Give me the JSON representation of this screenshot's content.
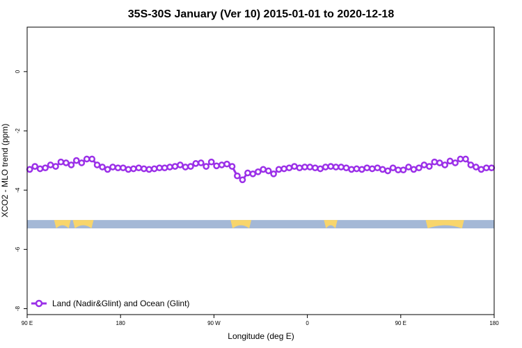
{
  "chart_data": {
    "type": "line",
    "title": "35S-30S January (Ver 10)   2015-01-01 to 2020-12-18",
    "xlabel": "Longitude (deg E)",
    "ylabel": "XCO2 - MLO trend (ppm)",
    "xlim": [
      90,
      540
    ],
    "ylim": [
      -8.2,
      1.5
    ],
    "x_ticks": [
      {
        "value": 90,
        "label": "90 E"
      },
      {
        "value": 180,
        "label": "180"
      },
      {
        "value": 270,
        "label": "90 W"
      },
      {
        "value": 360,
        "label": "0"
      },
      {
        "value": 450,
        "label": "90 E"
      },
      {
        "value": 540,
        "label": "180"
      }
    ],
    "y_ticks": [
      {
        "value": 0,
        "label": "0"
      },
      {
        "value": -2,
        "label": "-2"
      },
      {
        "value": -4,
        "label": "-4"
      },
      {
        "value": -6,
        "label": "-6"
      },
      {
        "value": -8,
        "label": "-8"
      }
    ],
    "grid": false,
    "legend_position": "bottom-left",
    "series": [
      {
        "name": "Land (Nadir&Glint) and Ocean (Glint)",
        "color": "#9b30e8",
        "x": [
          92.5,
          97.5,
          102.5,
          107.5,
          112.5,
          117.5,
          122.5,
          127.5,
          132.5,
          137.5,
          142.5,
          147.5,
          152.5,
          157.5,
          162.5,
          167.5,
          172.5,
          177.5,
          182.5,
          187.5,
          192.5,
          197.5,
          202.5,
          207.5,
          212.5,
          217.5,
          222.5,
          227.5,
          232.5,
          237.5,
          242.5,
          247.5,
          252.5,
          257.5,
          262.5,
          267.5,
          272.5,
          277.5,
          282.5,
          287.5,
          292.5,
          297.5,
          302.5,
          307.5,
          312.5,
          317.5,
          322.5,
          327.5,
          332.5,
          337.5,
          342.5,
          347.5,
          352.5,
          357.5,
          362.5,
          367.5,
          372.5,
          377.5,
          382.5,
          387.5,
          392.5,
          397.5,
          402.5,
          407.5,
          412.5,
          417.5,
          422.5,
          427.5,
          432.5,
          437.5,
          442.5,
          447.5,
          452.5,
          457.5,
          462.5,
          467.5,
          472.5,
          477.5,
          482.5,
          487.5,
          492.5,
          497.5,
          502.5,
          507.5,
          512.5,
          517.5,
          522.5,
          527.5,
          532.5,
          537.5
        ],
        "y": [
          -3.3,
          -3.2,
          -3.28,
          -3.25,
          -3.15,
          -3.2,
          -3.05,
          -3.08,
          -3.15,
          -3.0,
          -3.08,
          -2.95,
          -2.95,
          -3.15,
          -3.22,
          -3.3,
          -3.22,
          -3.25,
          -3.25,
          -3.3,
          -3.28,
          -3.25,
          -3.28,
          -3.3,
          -3.28,
          -3.25,
          -3.25,
          -3.22,
          -3.2,
          -3.15,
          -3.22,
          -3.2,
          -3.1,
          -3.08,
          -3.2,
          -3.05,
          -3.18,
          -3.15,
          -3.12,
          -3.2,
          -3.52,
          -3.65,
          -3.42,
          -3.45,
          -3.38,
          -3.3,
          -3.35,
          -3.45,
          -3.3,
          -3.28,
          -3.25,
          -3.2,
          -3.25,
          -3.22,
          -3.22,
          -3.25,
          -3.28,
          -3.22,
          -3.2,
          -3.22,
          -3.22,
          -3.25,
          -3.3,
          -3.28,
          -3.3,
          -3.25,
          -3.28,
          -3.25,
          -3.3,
          -3.35,
          -3.25,
          -3.32,
          -3.32,
          -3.22,
          -3.3,
          -3.25,
          -3.15,
          -3.2,
          -3.05,
          -3.08,
          -3.15,
          -3.02,
          -3.08,
          -2.95,
          -2.95,
          -3.15,
          -3.22,
          -3.3,
          -3.25,
          -3.25
        ]
      }
    ],
    "surface_band": {
      "y_center": -5.15,
      "ocean_color": "#a4b8d6",
      "land_color": "#f8d56b",
      "land_segments": [
        [
          116,
          132
        ],
        [
          134,
          154
        ],
        [
          286,
          306
        ],
        [
          376,
          389
        ],
        [
          474,
          511
        ]
      ]
    }
  }
}
